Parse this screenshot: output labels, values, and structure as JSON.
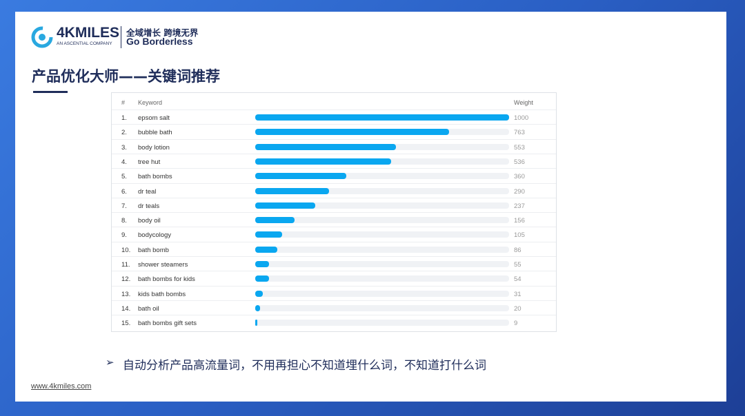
{
  "header": {
    "brand": "4KMILES",
    "brand_sub": "AN ASCENTIAL COMPANY",
    "slogan_cn": "全域增长 跨境无界",
    "slogan_en": "Go Borderless"
  },
  "title": "产品优化大师——关键词推荐",
  "table": {
    "columns": [
      "#",
      "Keyword",
      "Weight"
    ],
    "rows": [
      [
        "1.",
        "epsom salt",
        1000
      ],
      [
        "2.",
        "bubble bath",
        763
      ],
      [
        "3.",
        "body lotion",
        553
      ],
      [
        "4.",
        "tree hut",
        536
      ],
      [
        "5.",
        "bath bombs",
        360
      ],
      [
        "6.",
        "dr teal",
        290
      ],
      [
        "7.",
        "dr teals",
        237
      ],
      [
        "8.",
        "body oil",
        156
      ],
      [
        "9.",
        "bodycology",
        105
      ],
      [
        "10.",
        "bath bomb",
        86
      ],
      [
        "11.",
        "shower steamers",
        55
      ],
      [
        "12.",
        "bath bombs for kids",
        54
      ],
      [
        "13.",
        "kids bath bombs",
        31
      ],
      [
        "14.",
        "bath oil",
        20
      ],
      [
        "15.",
        "bath bombs gift sets",
        9
      ]
    ]
  },
  "bullet": "自动分析产品高流量词，不用再担心不知道埋什么词，不知道打什么词",
  "footer": "www.4kmiles.com"
}
